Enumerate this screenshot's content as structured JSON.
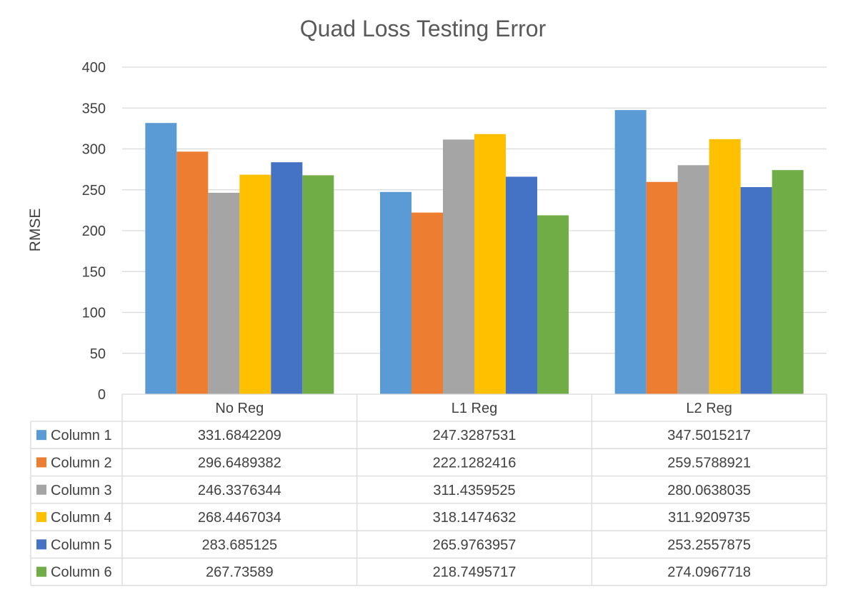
{
  "chart_data": {
    "type": "bar",
    "title": "Quad Loss Testing Error",
    "ylabel": "RMSE",
    "xlabel": "",
    "ylim": [
      0,
      400
    ],
    "yticks": [
      0,
      50,
      100,
      150,
      200,
      250,
      300,
      350,
      400
    ],
    "yticks_text": [
      "0",
      "50",
      "100",
      "150",
      "200",
      "250",
      "300",
      "350",
      "400"
    ],
    "grid": true,
    "legend": "data-table",
    "categories": [
      "No Reg",
      "L1 Reg",
      "L2 Reg"
    ],
    "series": [
      {
        "name": "Column 1",
        "color": "#5b9bd5",
        "values": [
          331.6842209,
          247.3287531,
          347.5015217
        ],
        "labels": [
          "331.6842209",
          "247.3287531",
          "347.5015217"
        ]
      },
      {
        "name": "Column 2",
        "color": "#ed7d31",
        "values": [
          296.6489382,
          222.1282416,
          259.5788921
        ],
        "labels": [
          "296.6489382",
          "222.1282416",
          "259.5788921"
        ]
      },
      {
        "name": "Column 3",
        "color": "#a5a5a5",
        "values": [
          246.3376344,
          311.4359525,
          280.0638035
        ],
        "labels": [
          "246.3376344",
          "311.4359525",
          "280.0638035"
        ]
      },
      {
        "name": "Column 4",
        "color": "#ffc000",
        "values": [
          268.4467034,
          318.1474632,
          311.9209735
        ],
        "labels": [
          "268.4467034",
          "318.1474632",
          "311.9209735"
        ]
      },
      {
        "name": "Column 5",
        "color": "#4472c4",
        "values": [
          283.685125,
          265.9763957,
          253.2557875
        ],
        "labels": [
          "283.685125",
          "265.9763957",
          "253.2557875"
        ]
      },
      {
        "name": "Column 6",
        "color": "#70ad47",
        "values": [
          267.73589,
          218.7495717,
          274.0967718
        ],
        "labels": [
          "267.73589",
          "218.7495717",
          "274.0967718"
        ]
      }
    ]
  }
}
